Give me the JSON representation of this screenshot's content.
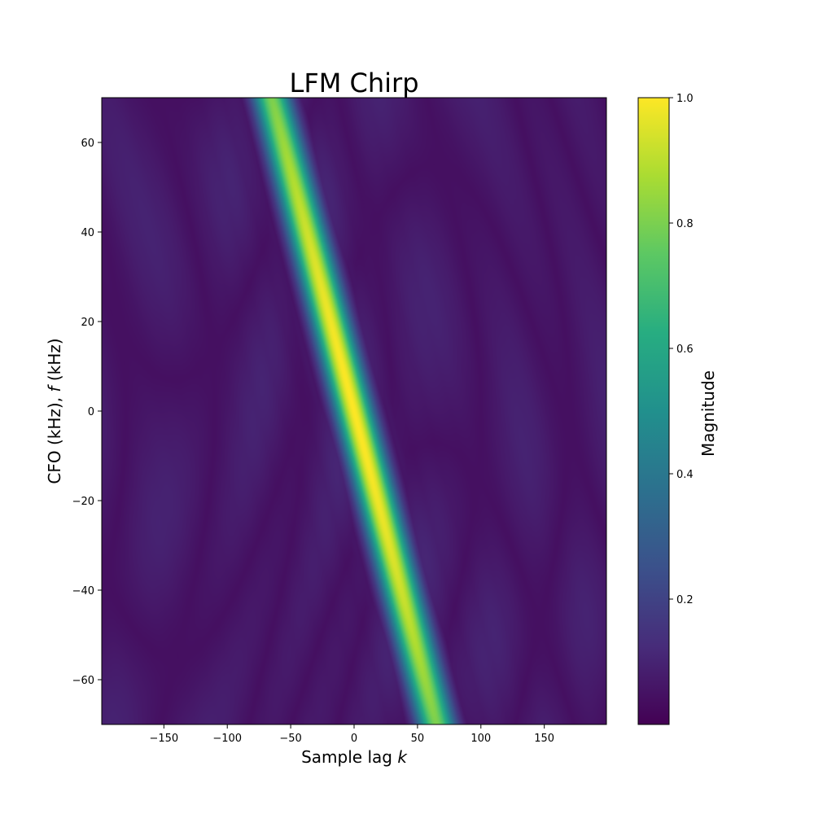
{
  "chart_data": {
    "type": "heatmap",
    "title": "LFM Chirp",
    "xlabel_text": "Sample lag ",
    "xlabel_var": "k",
    "ylabel_text": "CFO (kHz), ",
    "ylabel_var": "f",
    "ylabel_unit": " (kHz)",
    "colorbar_label": "Magnitude",
    "colormap": "viridis",
    "xlim": [
      -199,
      199
    ],
    "ylim": [
      -70,
      70
    ],
    "x_ticks": [
      -150,
      -100,
      -50,
      0,
      50,
      100,
      150
    ],
    "x_tick_labels": [
      "−150",
      "−100",
      "−50",
      "0",
      "50",
      "100",
      "150"
    ],
    "y_ticks": [
      -60,
      -40,
      -20,
      0,
      20,
      40,
      60
    ],
    "y_tick_labels": [
      "−60",
      "−40",
      "−20",
      "0",
      "20",
      "40",
      "60"
    ],
    "colorbar_range": [
      0.0,
      1.0
    ],
    "colorbar_ticks": [
      0.2,
      0.4,
      0.6,
      0.8,
      1.0
    ],
    "colorbar_tick_labels": [
      "0.2",
      "0.4",
      "0.6",
      "0.8",
      "1.0"
    ],
    "peak": {
      "x": 0,
      "y": 0,
      "value": 1.0
    },
    "ridge_slope_samples_per_khz": -0.93,
    "ridge_points": [
      {
        "y": 70,
        "x": -60,
        "value": 0.6
      },
      {
        "y": 20,
        "x": -17,
        "value": 0.92
      },
      {
        "y": 0,
        "x": 0,
        "value": 1.0
      },
      {
        "y": -40,
        "x": 35,
        "value": 0.82
      },
      {
        "y": -70,
        "x": 62,
        "value": 0.6
      }
    ],
    "grid": false,
    "legend": "none"
  }
}
